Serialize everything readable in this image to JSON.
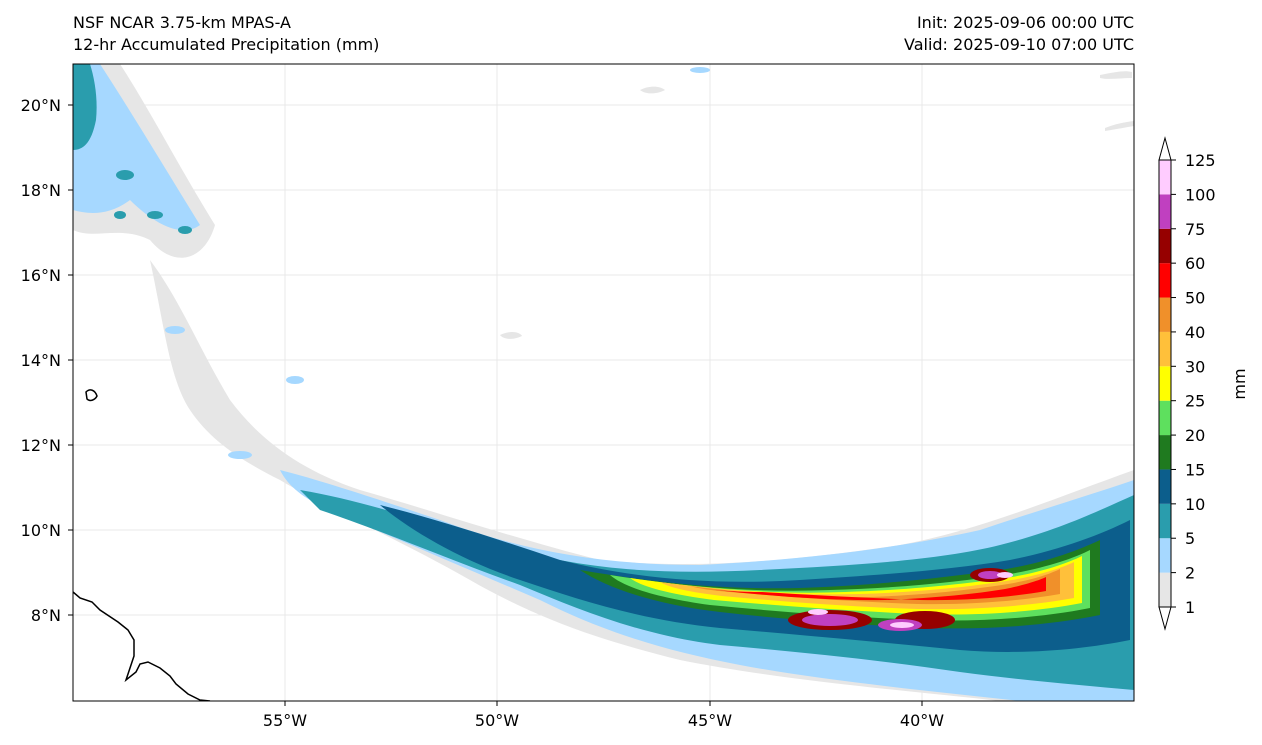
{
  "header": {
    "model": "NSF NCAR 3.75-km MPAS-A",
    "product": "12-hr Accumulated Precipitation (mm)",
    "init": "Init: 2025-09-06 00:00 UTC",
    "valid": "Valid: 2025-09-10 07:00 UTC"
  },
  "map": {
    "lon_range": [
      -60,
      -35
    ],
    "lat_range": [
      6,
      21
    ],
    "lon_ticks": [
      "55°W",
      "50°W",
      "45°W",
      "40°W"
    ],
    "lat_ticks": [
      "20°N",
      "18°N",
      "16°N",
      "14°N",
      "12°N",
      "10°N",
      "8°N"
    ],
    "gridlines": true
  },
  "colorbar": {
    "unit": "mm",
    "levels": [
      "1",
      "2",
      "5",
      "10",
      "15",
      "20",
      "25",
      "30",
      "40",
      "50",
      "60",
      "75",
      "100",
      "125"
    ],
    "colors": [
      "#e6e6e6",
      "#a6d8ff",
      "#2a9dad",
      "#0c5e8c",
      "#1f7a1f",
      "#5ee05e",
      "#ffff00",
      "#ffc03a",
      "#f0902a",
      "#ff0000",
      "#960000",
      "#c040c0",
      "#ffccff"
    ]
  }
}
